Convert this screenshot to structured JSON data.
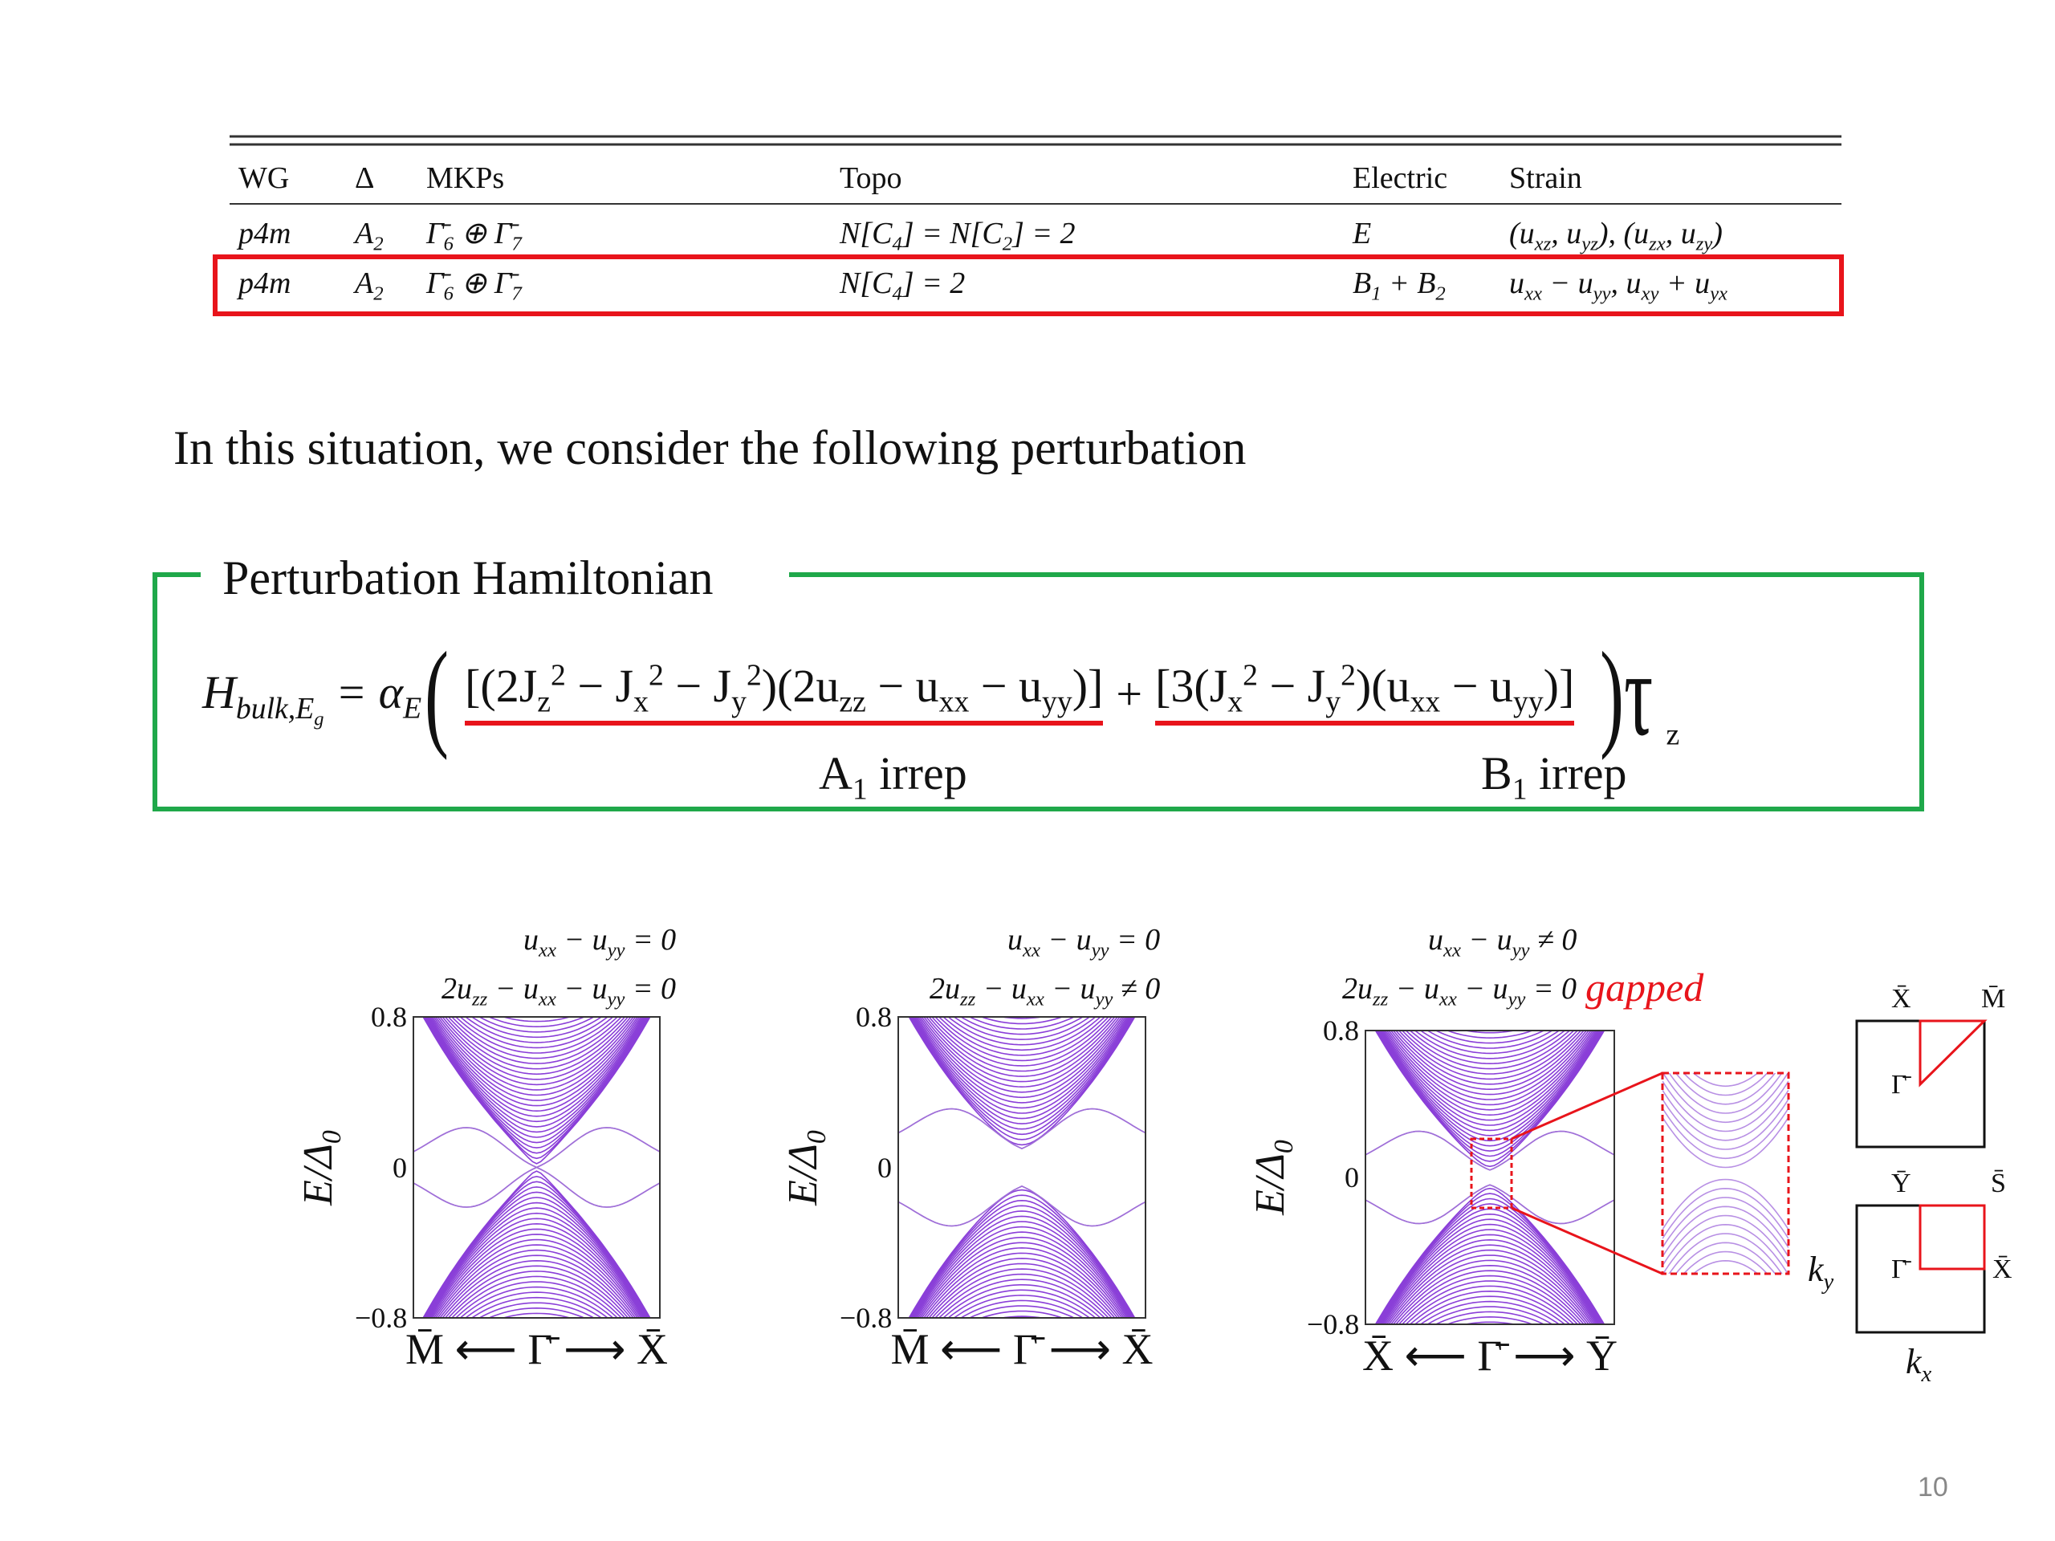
{
  "table": {
    "header": [
      "WG",
      "Δ",
      "MKPs",
      "Topo",
      "Electric",
      "Strain"
    ],
    "rows": [
      [
        "p4m",
        "A_{2}",
        "Γ̄_{6} ⊕ Γ̄_{7}",
        "N[C_{4}] = N[C_{2}] = 2",
        "E",
        "(u_{xz}, u_{yz}), (u_{zx}, u_{zy})"
      ],
      [
        "p4m",
        "A_{2}",
        "Γ̄_{6} ⊕ Γ̄_{7}",
        "N[C_{4}] = 2",
        "B_{1} + B_{2}",
        "u_{xx} − u_{yy}, u_{xy} + u_{yx}"
      ]
    ]
  },
  "sentence": "In this situation, we consider the following perturbation",
  "box": {
    "title": "Perturbation Hamiltonian",
    "lhs": "H_{bulk,E_{g}} = α_{E}",
    "open": "(",
    "term1": "[(2J_{z}^{2} − J_{x}^{2} − J_{y}^{2})(2u_{zz} − u_{xx} − u_{yy})]",
    "plus": "+",
    "term2": "[3(J_{x}^{2} − J_{y}^{2})(u_{xx} − u_{yy})]",
    "close": ")τ_{z}",
    "labels": [
      "A_{1} irrep",
      "B_{1} irrep"
    ]
  },
  "plots": [
    {
      "conditions": [
        "u_{xx} − u_{yy} = 0",
        "2u_{zz} − u_{xx} − u_{yy} = 0"
      ],
      "yticks": [
        "0.8",
        "0",
        "−0.8"
      ],
      "ylabel": "E/Δ_{0}",
      "xlabel": "M̄ ⟵ Γ̄ ⟶ X̄"
    },
    {
      "conditions": [
        "u_{xx} − u_{yy} = 0",
        "2u_{zz} − u_{xx} − u_{yy} ≠ 0"
      ],
      "yticks": [
        "0.8",
        "0",
        "−0.8"
      ],
      "ylabel": "E/Δ_{0}",
      "xlabel": "M̄ ⟵ Γ̄ ⟶ X̄"
    },
    {
      "conditions": [
        "u_{xx} − u_{yy} ≠ 0",
        "2u_{zz} − u_{xx} − u_{yy} = 0"
      ],
      "yticks": [
        "0.8",
        "0",
        "−0.8"
      ],
      "ylabel": "E/Δ_{0}",
      "xlabel": "X̄ ⟵ Γ̄ ⟶ Ȳ"
    }
  ],
  "annotation": "gapped",
  "bz": {
    "top": [
      "X̄",
      "M̄",
      "Γ̄"
    ],
    "bottom": [
      "Ȳ",
      "S̄",
      "Γ̄",
      "X̄"
    ],
    "axes": [
      "k_{y}",
      "k_{x}"
    ]
  },
  "page_number": "10"
}
